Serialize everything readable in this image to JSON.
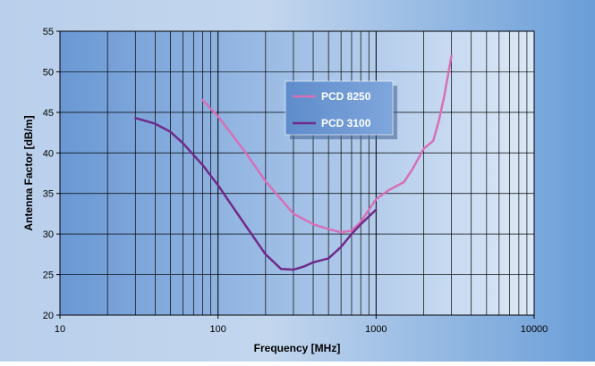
{
  "chart_data": {
    "type": "line",
    "title": "",
    "xlabel": "Frequency [MHz]",
    "ylabel": "Antenna Factor [dB/m]",
    "xscale": "log",
    "xlim": [
      10,
      10000
    ],
    "ylim": [
      20,
      55
    ],
    "grid": true,
    "legend_position": "upper-center",
    "x_ticks": [
      "10",
      "100",
      "1000",
      "10000"
    ],
    "y_ticks": [
      "20",
      "25",
      "30",
      "35",
      "40",
      "45",
      "50",
      "55"
    ],
    "series": [
      {
        "name": "PCD 8250",
        "color": "#D670B8",
        "x": [
          80,
          100,
          150,
          200,
          300,
          400,
          500,
          600,
          700,
          800,
          1000,
          1200,
          1500,
          1700,
          2000,
          2300,
          2500,
          2700,
          3000
        ],
        "y": [
          46.5,
          44.5,
          40.0,
          36.5,
          32.5,
          31.2,
          30.6,
          30.2,
          30.4,
          31.5,
          34.3,
          35.4,
          36.4,
          38.0,
          40.5,
          41.5,
          44.0,
          47.0,
          52.0
        ]
      },
      {
        "name": "PCD 3100",
        "color": "#702A8A",
        "x": [
          30,
          40,
          50,
          60,
          80,
          100,
          150,
          200,
          250,
          300,
          350,
          400,
          500,
          600,
          700,
          800,
          1000
        ],
        "y": [
          44.3,
          43.6,
          42.6,
          41.2,
          38.5,
          36.0,
          31.0,
          27.5,
          25.7,
          25.6,
          26.0,
          26.5,
          27.0,
          28.4,
          30.0,
          31.2,
          33.0
        ]
      }
    ]
  }
}
